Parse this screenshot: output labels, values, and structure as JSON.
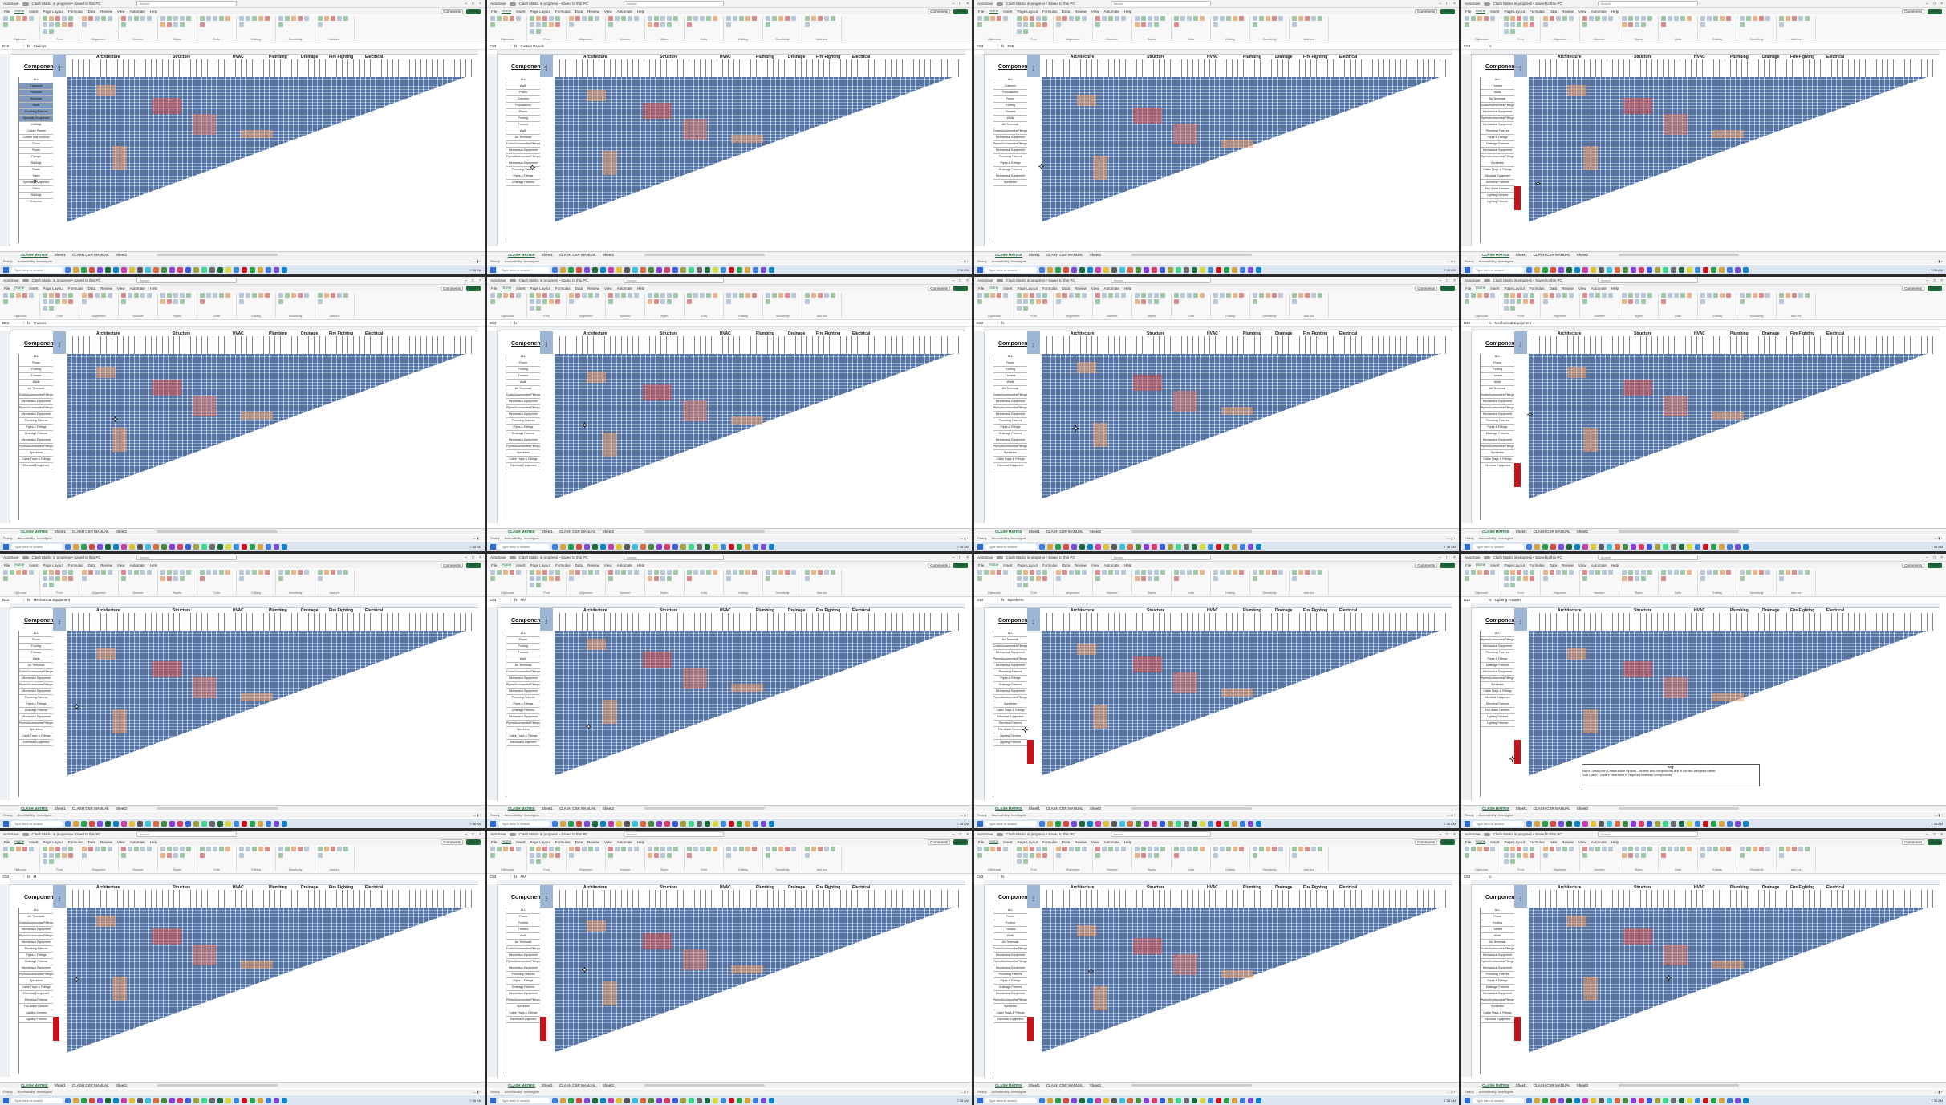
{
  "app": {
    "autosave": "AutoSave",
    "title": "Clash Matrix in progress • Saved to this PC",
    "search_placeholder": "Search",
    "menu": [
      "File",
      "Home",
      "Insert",
      "Page Layout",
      "Formulas",
      "Data",
      "Review",
      "View",
      "Automate",
      "Help"
    ],
    "comments": "Comments",
    "share": "Share",
    "ribbon_groups": [
      "Clipboard",
      "Font",
      "Alignment",
      "Number",
      "Styles",
      "Cells",
      "Editing",
      "Sensitivity",
      "Add-ins"
    ]
  },
  "sheet": {
    "components_title": "Components",
    "all_label": "ALL",
    "groups": [
      "Architecture",
      "Structure",
      "HVAC",
      "Plumbing",
      "Drainage",
      "Fire Fighting",
      "Electrical"
    ],
    "tabs": [
      "CLASH MATRIX",
      "Sheet1",
      "CLASH CSR MANUAL",
      "Sheet2"
    ],
    "status_left": "Ready",
    "accessibility": "Accessibility: Investigate",
    "taskbar_search": "Type here to search",
    "clock": "7:38 AM"
  },
  "panels": [
    {
      "name_box": "B19",
      "formula": "Ceilings",
      "rows": [
        "ALL",
        "Casework",
        "Furniture",
        "Windows",
        "Walls",
        "Plumbing Fixtures",
        "Specialty Equipment",
        "Ceilings",
        "Curtain Panels",
        "Curtain wall mullions",
        "Doors",
        "Floors",
        "Ramps",
        "Railings",
        "Roofs",
        "Stairs",
        "Specialty Equipment",
        "Stairs",
        "Railings",
        "Columns"
      ],
      "selected": [
        1,
        2,
        3,
        4,
        5,
        6
      ],
      "cursor": [
        40,
        160
      ]
    },
    {
      "name_box": "C53",
      "formula": "Curtain Panels",
      "rows": [
        "ALL",
        "Walls",
        "Floors",
        "Columns",
        "Foundations",
        "Floors",
        "Footing",
        "Trusses",
        "Walls",
        "Air Terminals",
        "Ducts/Accessories/Fittings",
        "Mechanical Equipment",
        "Pipes/Accessories/Fittings",
        "Mechanical Equipment",
        "Plumbing Fixtures",
        "Pipes & Fittings",
        "Drainage Fixtures"
      ],
      "selected": [],
      "cursor": [
        53,
        143
      ]
    },
    {
      "name_box": "C53",
      "formula": "F49",
      "rows": [
        "ALL",
        "Columns",
        "Foundations",
        "Floors",
        "Footing",
        "Trusses",
        "Walls",
        "Air Terminals",
        "Ducts/Accessories/Fittings",
        "Mechanical Equipment",
        "Pipes/Accessories/Fittings",
        "Mechanical Equipment",
        "Plumbing Fixtures",
        "Pipes & Fittings",
        "Drainage Fixtures",
        "Mechanical Equipment",
        "Sprinklers"
      ],
      "selected": [],
      "cursor": [
        80,
        142
      ]
    },
    {
      "name_box": "C53",
      "formula": "",
      "rows": [
        "ALL",
        "Trusses",
        "Walls",
        "Air Terminals",
        "Ducts/Accessories/Fittings",
        "Mechanical Equipment",
        "Pipes/Accessories/Fittings",
        "Mechanical Equipment",
        "Plumbing Fixtures",
        "Pipes & Fittings",
        "Drainage Fixtures",
        "Mechanical Equipment",
        "Pipes/Accessories/Fittings",
        "Sprinklers",
        "Cable Trays & Fittings",
        "Electrical Equipment",
        "Electrical Fixtures",
        "Fire Alarm Devices",
        "Lighting Devices",
        "Lighting Fixtures"
      ],
      "selected": [],
      "cursor": [
        92,
        163
      ]
    },
    {
      "name_box": "B33",
      "formula": "Trusses",
      "rows": [
        "ALL",
        "Floors",
        "Footing",
        "Trusses",
        "Walls",
        "Air Terminals",
        "Ducts/Accessories/Fittings",
        "Mechanical Equipment",
        "Pipes/Accessories/Fittings",
        "Mechanical Equipment",
        "Plumbing Fixtures",
        "Pipes & Fittings",
        "Drainage Fixtures",
        "Mechanical Equipment",
        "Pipes/Accessories/Fittings",
        "Sprinklers",
        "Cable Trays & Fittings",
        "Electrical Equipment"
      ],
      "selected": [],
      "cursor": [
        140,
        112
      ]
    },
    {
      "name_box": "C53",
      "formula": "",
      "rows": [
        "ALL",
        "Floors",
        "Footing",
        "Trusses",
        "Walls",
        "Air Terminals",
        "Ducts/Accessories/Fittings",
        "Mechanical Equipment",
        "Pipes/Accessories/Fittings",
        "Mechanical Equipment",
        "Plumbing Fixtures",
        "Pipes & Fittings",
        "Drainage Fixtures",
        "Mechanical Equipment",
        "Pipes/Accessories/Fittings",
        "Sprinklers",
        "Cable Trays & Fittings",
        "Electrical Equipment"
      ],
      "selected": [],
      "cursor": [
        118,
        119
      ]
    },
    {
      "name_box": "C53",
      "formula": "",
      "rows": [
        "ALL",
        "Floors",
        "Footing",
        "Trusses",
        "Walls",
        "Air Terminals",
        "Ducts/Accessories/Fittings",
        "Mechanical Equipment",
        "Pipes/Accessories/Fittings",
        "Mechanical Equipment",
        "Plumbing Fixtures",
        "Pipes & Fittings",
        "Drainage Fixtures",
        "Mechanical Equipment",
        "Pipes/Accessories/Fittings",
        "Sprinklers",
        "Cable Trays & Fittings",
        "Electrical Equipment"
      ],
      "selected": [],
      "cursor": [
        123,
        123
      ]
    },
    {
      "name_box": "B33",
      "formula": "Mechanical Equipment",
      "rows": [
        "ALL",
        "Floors",
        "Footing",
        "Trusses",
        "Walls",
        "Air Terminals",
        "Ducts/Accessories/Fittings",
        "Mechanical Equipment",
        "Pipes/Accessories/Fittings",
        "Mechanical Equipment",
        "Plumbing Fixtures",
        "Pipes & Fittings",
        "Drainage Fixtures",
        "Mechanical Equipment",
        "Pipes/Accessories/Fittings",
        "Sprinklers",
        "Cable Trays & Fittings",
        "Electrical Equipment"
      ],
      "selected": [],
      "cursor": [
        82,
        106
      ]
    },
    {
      "name_box": "B33",
      "formula": "Mechanical Equipment",
      "rows": [
        "ALL",
        "Floors",
        "Footing",
        "Trusses",
        "Walls",
        "Air Terminals",
        "Ducts/Accessories/Fittings",
        "Mechanical Equipment",
        "Pipes/Accessories/Fittings",
        "Mechanical Equipment",
        "Plumbing Fixtures",
        "Pipes & Fittings",
        "Drainage Fixtures",
        "Mechanical Equipment",
        "Pipes/Accessories/Fittings",
        "Sprinklers",
        "Cable Trays & Fittings",
        "Electrical Equipment"
      ],
      "selected": [],
      "cursor": [
        92,
        125
      ]
    },
    {
      "name_box": "C53",
      "formula": "N/A",
      "rows": [
        "ALL",
        "Floors",
        "Footing",
        "Trusses",
        "Walls",
        "Air Terminals",
        "Ducts/Accessories/Fittings",
        "Mechanical Equipment",
        "Pipes/Accessories/Fittings",
        "Mechanical Equipment",
        "Plumbing Fixtures",
        "Pipes & Fittings",
        "Drainage Fixtures",
        "Mechanical Equipment",
        "Pipes/Accessories/Fittings",
        "Sprinklers",
        "Cable Trays & Fittings",
        "Electrical Equipment"
      ],
      "selected": [],
      "cursor": [
        123,
        150
      ]
    },
    {
      "name_box": "B33",
      "formula": "Sprinklers",
      "rows": [
        "ALL",
        "Air Terminals",
        "Ducts/Accessories/Fittings",
        "Mechanical Equipment",
        "Pipes/Accessories/Fittings",
        "Mechanical Equipment",
        "Plumbing Fixtures",
        "Pipes & Fittings",
        "Drainage Fixtures",
        "Mechanical Equipment",
        "Pipes/Accessories/Fittings",
        "Sprinklers",
        "Cable Trays & Fittings",
        "Electrical Equipment",
        "Electrical Fixtures",
        "Fire Alarm Devices",
        "Lighting Devices",
        "Lighting Fixtures"
      ],
      "selected": [],
      "cursor": [
        60,
        154
      ]
    },
    {
      "name_box": "B33",
      "formula": "Lighting Fixtures",
      "rows": [
        "ALL",
        "Pipes/Accessories/Fittings",
        "Mechanical Equipment",
        "Plumbing Fixtures",
        "Pipes & Fittings",
        "Drainage Fixtures",
        "Mechanical Equipment",
        "Pipes/Accessories/Fittings",
        "Sprinklers",
        "Cable Trays & Fittings",
        "Electrical Equipment",
        "Electrical Fixtures",
        "Fire Alarm Devices",
        "Lighting Devices",
        "Lighting Fixtures"
      ],
      "selected": [],
      "cursor": [
        60,
        190
      ],
      "key": true
    },
    {
      "name_box": "C53",
      "formula": "M",
      "rows": [
        "ALL",
        "Air Terminals",
        "Ducts/Accessories/Fittings",
        "Mechanical Equipment",
        "Pipes/Accessories/Fittings",
        "Mechanical Equipment",
        "Plumbing Fixtures",
        "Pipes & Fittings",
        "Drainage Fixtures",
        "Mechanical Equipment",
        "Pipes/Accessories/Fittings",
        "Sprinklers",
        "Cable Trays & Fittings",
        "Electrical Equipment",
        "Electrical Fixtures",
        "Fire Alarm Devices",
        "Lighting Devices",
        "Lighting Fixtures"
      ],
      "selected": [],
      "cursor": [
        92,
        120
      ]
    },
    {
      "name_box": "C53",
      "formula": "N/A",
      "rows": [
        "ALL",
        "Floors",
        "Footing",
        "Trusses",
        "Walls",
        "Air Terminals",
        "Ducts/Accessories/Fittings",
        "Mechanical Equipment",
        "Pipes/Accessories/Fittings",
        "Mechanical Equipment",
        "Plumbing Fixtures",
        "Pipes & Fittings",
        "Drainage Fixtures",
        "Mechanical Equipment",
        "Pipes/Accessories/Fittings",
        "Sprinklers",
        "Cable Trays & Fittings",
        "Electrical Equipment"
      ],
      "selected": [],
      "cursor": [
        118,
        108
      ]
    },
    {
      "name_box": "C53",
      "formula": "",
      "rows": [
        "ALL",
        "Floors",
        "Footing",
        "Trusses",
        "Walls",
        "Air Terminals",
        "Ducts/Accessories/Fittings",
        "Mechanical Equipment",
        "Pipes/Accessories/Fittings",
        "Mechanical Equipment",
        "Plumbing Fixtures",
        "Pipes & Fittings",
        "Drainage Fixtures",
        "Mechanical Equipment",
        "Pipes/Accessories/Fittings",
        "Sprinklers",
        "Cable Trays & Fittings",
        "Electrical Equipment"
      ],
      "selected": [],
      "cursor": [
        142,
        110
      ]
    },
    {
      "name_box": "C53",
      "formula": "",
      "rows": [
        "ALL",
        "Floors",
        "Footing",
        "Trusses",
        "Walls",
        "Air Terminals",
        "Ducts/Accessories/Fittings",
        "Mechanical Equipment",
        "Pipes/Accessories/Fittings",
        "Mechanical Equipment",
        "Plumbing Fixtures",
        "Pipes & Fittings",
        "Drainage Fixtures",
        "Mechanical Equipment",
        "Pipes/Accessories/Fittings",
        "Sprinklers",
        "Cable Trays & Fittings",
        "Electrical Equipment"
      ],
      "selected": [],
      "cursor": [
        255,
        118
      ]
    }
  ],
  "key_box": {
    "title": "Key",
    "rows": [
      "Hard Clash (with Construction Option) - Where two components are in conflict with each other",
      "Soft Clash - Where clearance is required between components"
    ]
  },
  "colors": {
    "excel_green": "#1d6b3a",
    "matrix_blue": "#8aa4c8",
    "selected_row": "#7f98bd",
    "hot_red": "#d9534f",
    "hot_orange": "#f0a36b",
    "red_block": "#c8121a"
  }
}
